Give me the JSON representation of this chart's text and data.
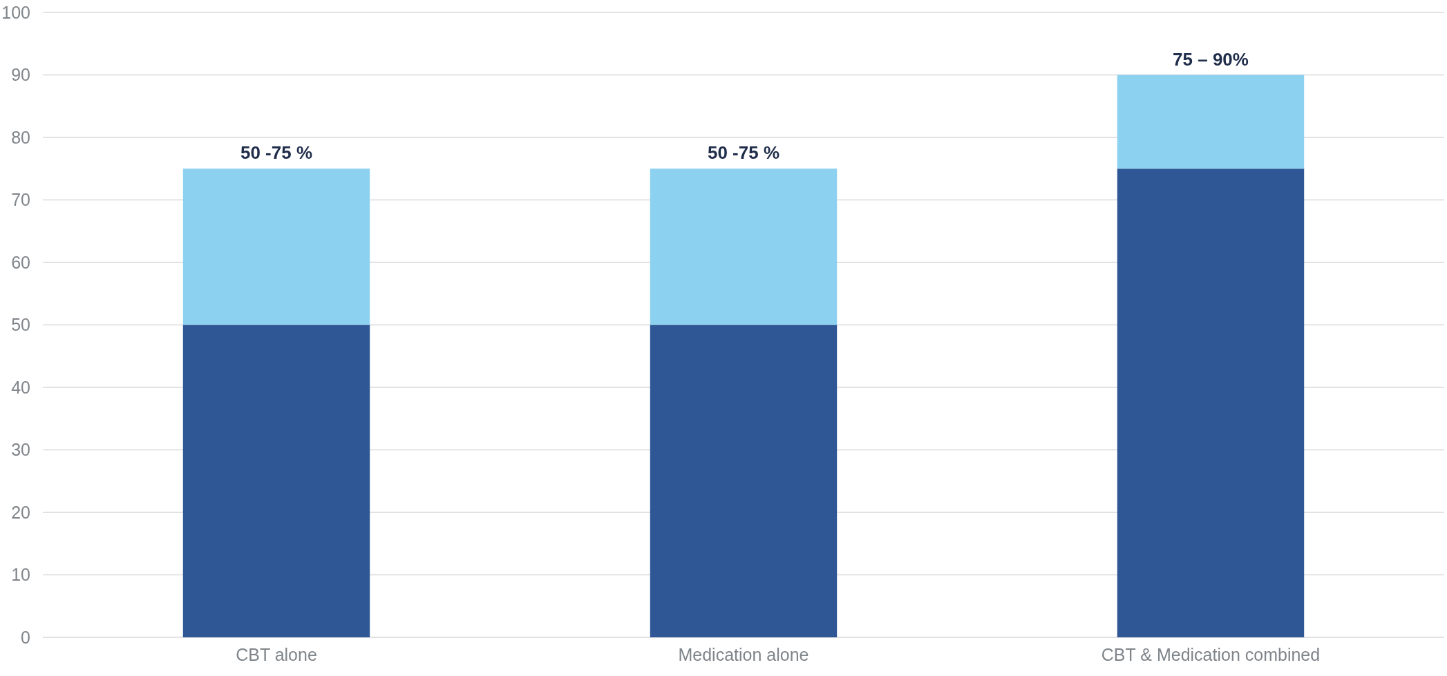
{
  "chart_data": {
    "type": "bar",
    "stacked": true,
    "categories": [
      "CBT alone",
      "Medication alone",
      "CBT & Medication combined"
    ],
    "series": [
      {
        "color": "#2f5795",
        "values": [
          50,
          50,
          75
        ]
      },
      {
        "color": "#8dd1f0",
        "values": [
          25,
          25,
          15
        ]
      }
    ],
    "totals": [
      "50 -75 %",
      "50 -75 %",
      "75 – 90%"
    ],
    "ylim": [
      0,
      100
    ],
    "yticks": [
      0,
      10,
      20,
      30,
      40,
      50,
      60,
      70,
      80,
      90,
      100
    ],
    "grid": "y"
  }
}
